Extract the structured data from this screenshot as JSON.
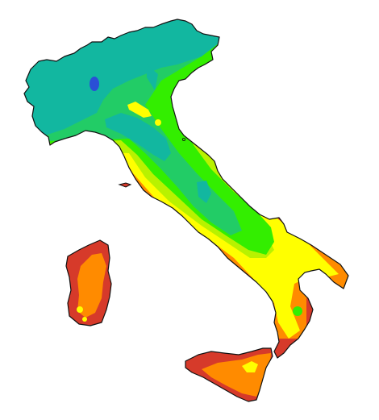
{
  "map": {
    "colors": {
      "zone_1": "#12b7a0",
      "zone_2": "#22cc66",
      "zone_3": "#33ee00",
      "zone_4": "#b8f200",
      "zone_5": "#ffff00",
      "zone_6": "#ff8b00",
      "zone_7": "#d63a2a",
      "zone_deep": "#2a4fd6",
      "outline": "#111111",
      "background": "#ffffff"
    },
    "regions": [
      "italy-mainland",
      "sicily",
      "sardinia",
      "elba"
    ]
  }
}
